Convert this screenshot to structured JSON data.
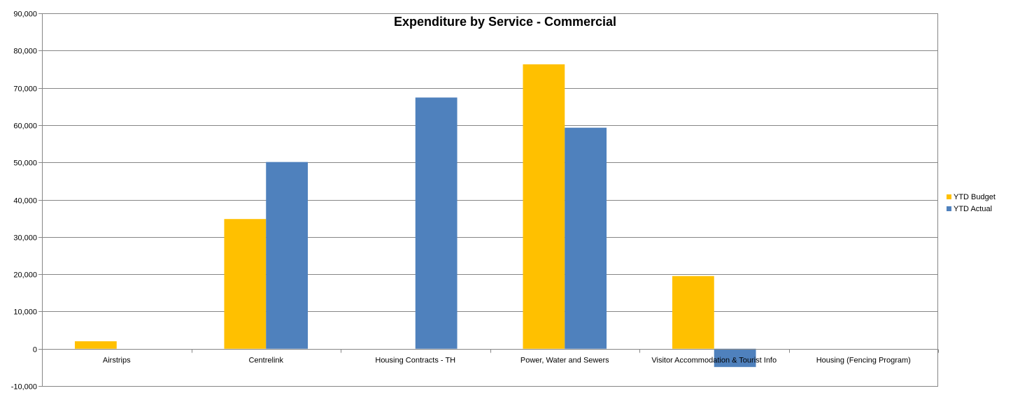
{
  "chart_data": {
    "type": "bar",
    "title": "Expenditure by Service - Commercial",
    "xlabel": "",
    "ylabel": "",
    "ylim": [
      -10000,
      90000
    ],
    "ytick_step": 10000,
    "ytick_labels": [
      "-10,000",
      "0",
      "10,000",
      "20,000",
      "30,000",
      "40,000",
      "50,000",
      "60,000",
      "70,000",
      "80,000",
      "90,000"
    ],
    "grid": true,
    "legend_position": "right",
    "categories": [
      "Airstrips",
      "Centrelink",
      "Housing Contracts - TH",
      "Power, Water and Sewers",
      "Visitor Accommodation & Tourist Info",
      "Housing (Fencing Program)"
    ],
    "series": [
      {
        "name": "YTD Budget",
        "color": "#FFC000",
        "values": [
          2000,
          34800,
          0,
          76300,
          19500,
          0
        ]
      },
      {
        "name": "YTD Actual",
        "color": "#4F81BD",
        "values": [
          0,
          50100,
          67400,
          59300,
          -4900,
          0
        ]
      }
    ]
  }
}
